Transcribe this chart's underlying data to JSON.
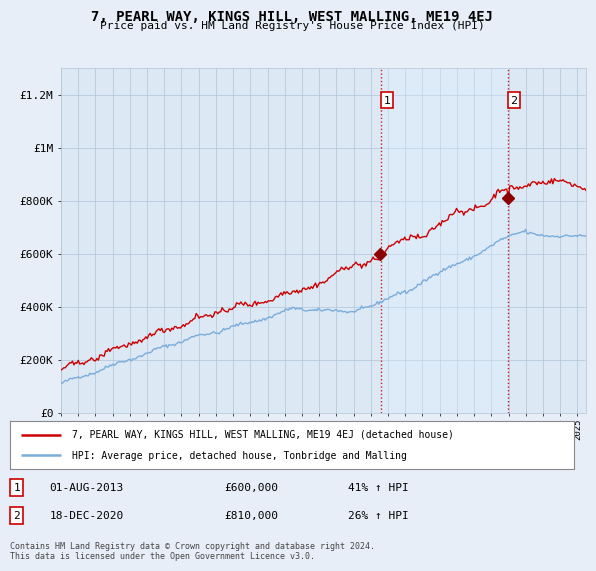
{
  "title": "7, PEARL WAY, KINGS HILL, WEST MALLING, ME19 4EJ",
  "subtitle": "Price paid vs. HM Land Registry's House Price Index (HPI)",
  "ylabel_ticks": [
    "£0",
    "£200K",
    "£400K",
    "£600K",
    "£800K",
    "£1M",
    "£1.2M"
  ],
  "ytick_values": [
    0,
    200000,
    400000,
    600000,
    800000,
    1000000,
    1200000
  ],
  "ylim": [
    0,
    1300000
  ],
  "xlim_start": 1995.0,
  "xlim_end": 2025.5,
  "legend_line1": "7, PEARL WAY, KINGS HILL, WEST MALLING, ME19 4EJ (detached house)",
  "legend_line2": "HPI: Average price, detached house, Tonbridge and Malling",
  "annotation1_label": "1",
  "annotation1_date": "01-AUG-2013",
  "annotation1_price": "£600,000",
  "annotation1_hpi": "41% ↑ HPI",
  "annotation2_label": "2",
  "annotation2_date": "18-DEC-2020",
  "annotation2_price": "£810,000",
  "annotation2_hpi": "26% ↑ HPI",
  "footer": "Contains HM Land Registry data © Crown copyright and database right 2024.\nThis data is licensed under the Open Government Licence v3.0.",
  "price_color": "#cc0000",
  "hpi_color": "#7aaddc",
  "vline_color": "#cc0000",
  "span_color": "#ddeeff",
  "background_color": "#e8eef8",
  "plot_bg_color": "#dde8f5",
  "grid_color": "#b0c4d8",
  "legend_bg": "#ffffff",
  "title_fontsize": 10,
  "subtitle_fontsize": 8
}
